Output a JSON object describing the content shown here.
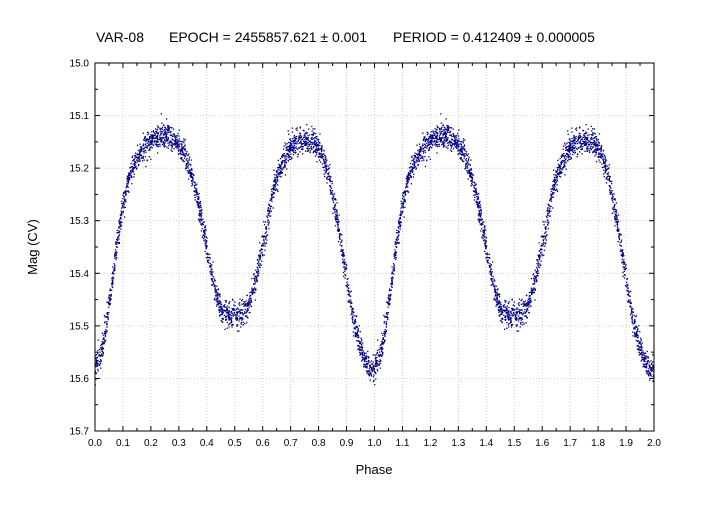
{
  "chart_data": {
    "type": "scatter",
    "title_parts": {
      "name": "VAR-08",
      "epoch": "EPOCH = 2455857.621 ± 0.001",
      "period": "PERIOD = 0.412409 ± 0.000005"
    },
    "xlabel": "Phase",
    "ylabel": "Mag (CV)",
    "xlim": [
      0.0,
      2.0
    ],
    "ylim": [
      15.7,
      15.0
    ],
    "y_inverted": true,
    "x_ticks": [
      "0.0",
      "0.1",
      "0.2",
      "0.3",
      "0.4",
      "0.5",
      "0.6",
      "0.7",
      "0.8",
      "0.9",
      "1.0",
      "1.1",
      "1.2",
      "1.3",
      "1.4",
      "1.5",
      "1.6",
      "1.7",
      "1.8",
      "1.9",
      "2.0"
    ],
    "y_ticks": [
      "15.0",
      "15.1",
      "15.2",
      "15.3",
      "15.4",
      "15.5",
      "15.6",
      "15.7"
    ],
    "grid": true,
    "marker_color": "#000080",
    "series": [
      {
        "light_curve_single_cycle": [
          [
            0.0,
            15.58
          ],
          [
            0.02,
            15.56
          ],
          [
            0.04,
            15.5
          ],
          [
            0.06,
            15.42
          ],
          [
            0.08,
            15.34
          ],
          [
            0.1,
            15.27
          ],
          [
            0.12,
            15.22
          ],
          [
            0.15,
            15.18
          ],
          [
            0.18,
            15.16
          ],
          [
            0.22,
            15.14
          ],
          [
            0.25,
            15.135
          ],
          [
            0.28,
            15.14
          ],
          [
            0.32,
            15.17
          ],
          [
            0.36,
            15.24
          ],
          [
            0.39,
            15.32
          ],
          [
            0.42,
            15.41
          ],
          [
            0.45,
            15.47
          ],
          [
            0.48,
            15.48
          ],
          [
            0.5,
            15.48
          ],
          [
            0.52,
            15.48
          ],
          [
            0.55,
            15.46
          ],
          [
            0.58,
            15.4
          ],
          [
            0.61,
            15.32
          ],
          [
            0.64,
            15.24
          ],
          [
            0.67,
            15.19
          ],
          [
            0.7,
            15.16
          ],
          [
            0.73,
            15.15
          ],
          [
            0.75,
            15.145
          ],
          [
            0.78,
            15.15
          ],
          [
            0.81,
            15.17
          ],
          [
            0.84,
            15.22
          ],
          [
            0.87,
            15.31
          ],
          [
            0.9,
            15.41
          ],
          [
            0.93,
            15.5
          ],
          [
            0.96,
            15.56
          ],
          [
            0.98,
            15.58
          ],
          [
            1.0,
            15.58
          ]
        ]
      }
    ]
  }
}
